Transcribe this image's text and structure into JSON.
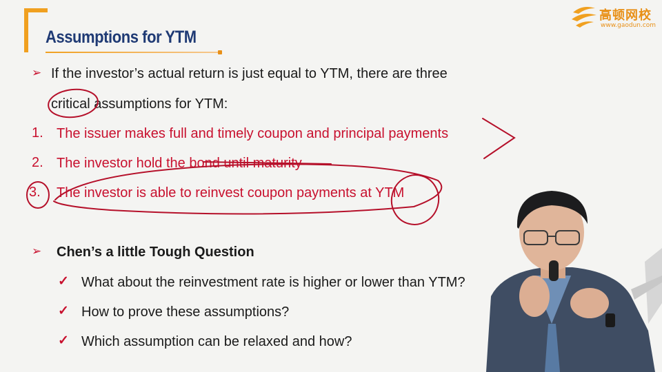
{
  "slide": {
    "title": "Assumptions for YTM",
    "logo": {
      "name": "高顿网校",
      "url": "www.gaodun.com"
    },
    "intro_line1": "If the investor’s actual return is just equal to YTM, there are three",
    "intro_line2": "critical assumptions for YTM:",
    "assumptions": [
      {
        "num": "1.",
        "text": "The issuer makes full and timely coupon and principal payments"
      },
      {
        "num": "2.",
        "text": "The investor hold the bond until maturity"
      },
      {
        "num": "3.",
        "text": "The investor is able to reinvest coupon payments at YTM"
      }
    ],
    "question_heading": "Chen’s a little Tough Question",
    "questions": [
      "What about the reinvestment rate is higher or lower than YTM?",
      "How to prove these assumptions?",
      "Which assumption can be relaxed and how?"
    ]
  },
  "colors": {
    "title": "#1f3a74",
    "accent_orange": "#f0a020",
    "text_red": "#c8102e",
    "text_black": "#1a1a1a",
    "background": "#f4f4f2"
  },
  "icons": [
    "bullet-arrow-icon",
    "checkmark-icon",
    "gaodun-logo-icon"
  ]
}
